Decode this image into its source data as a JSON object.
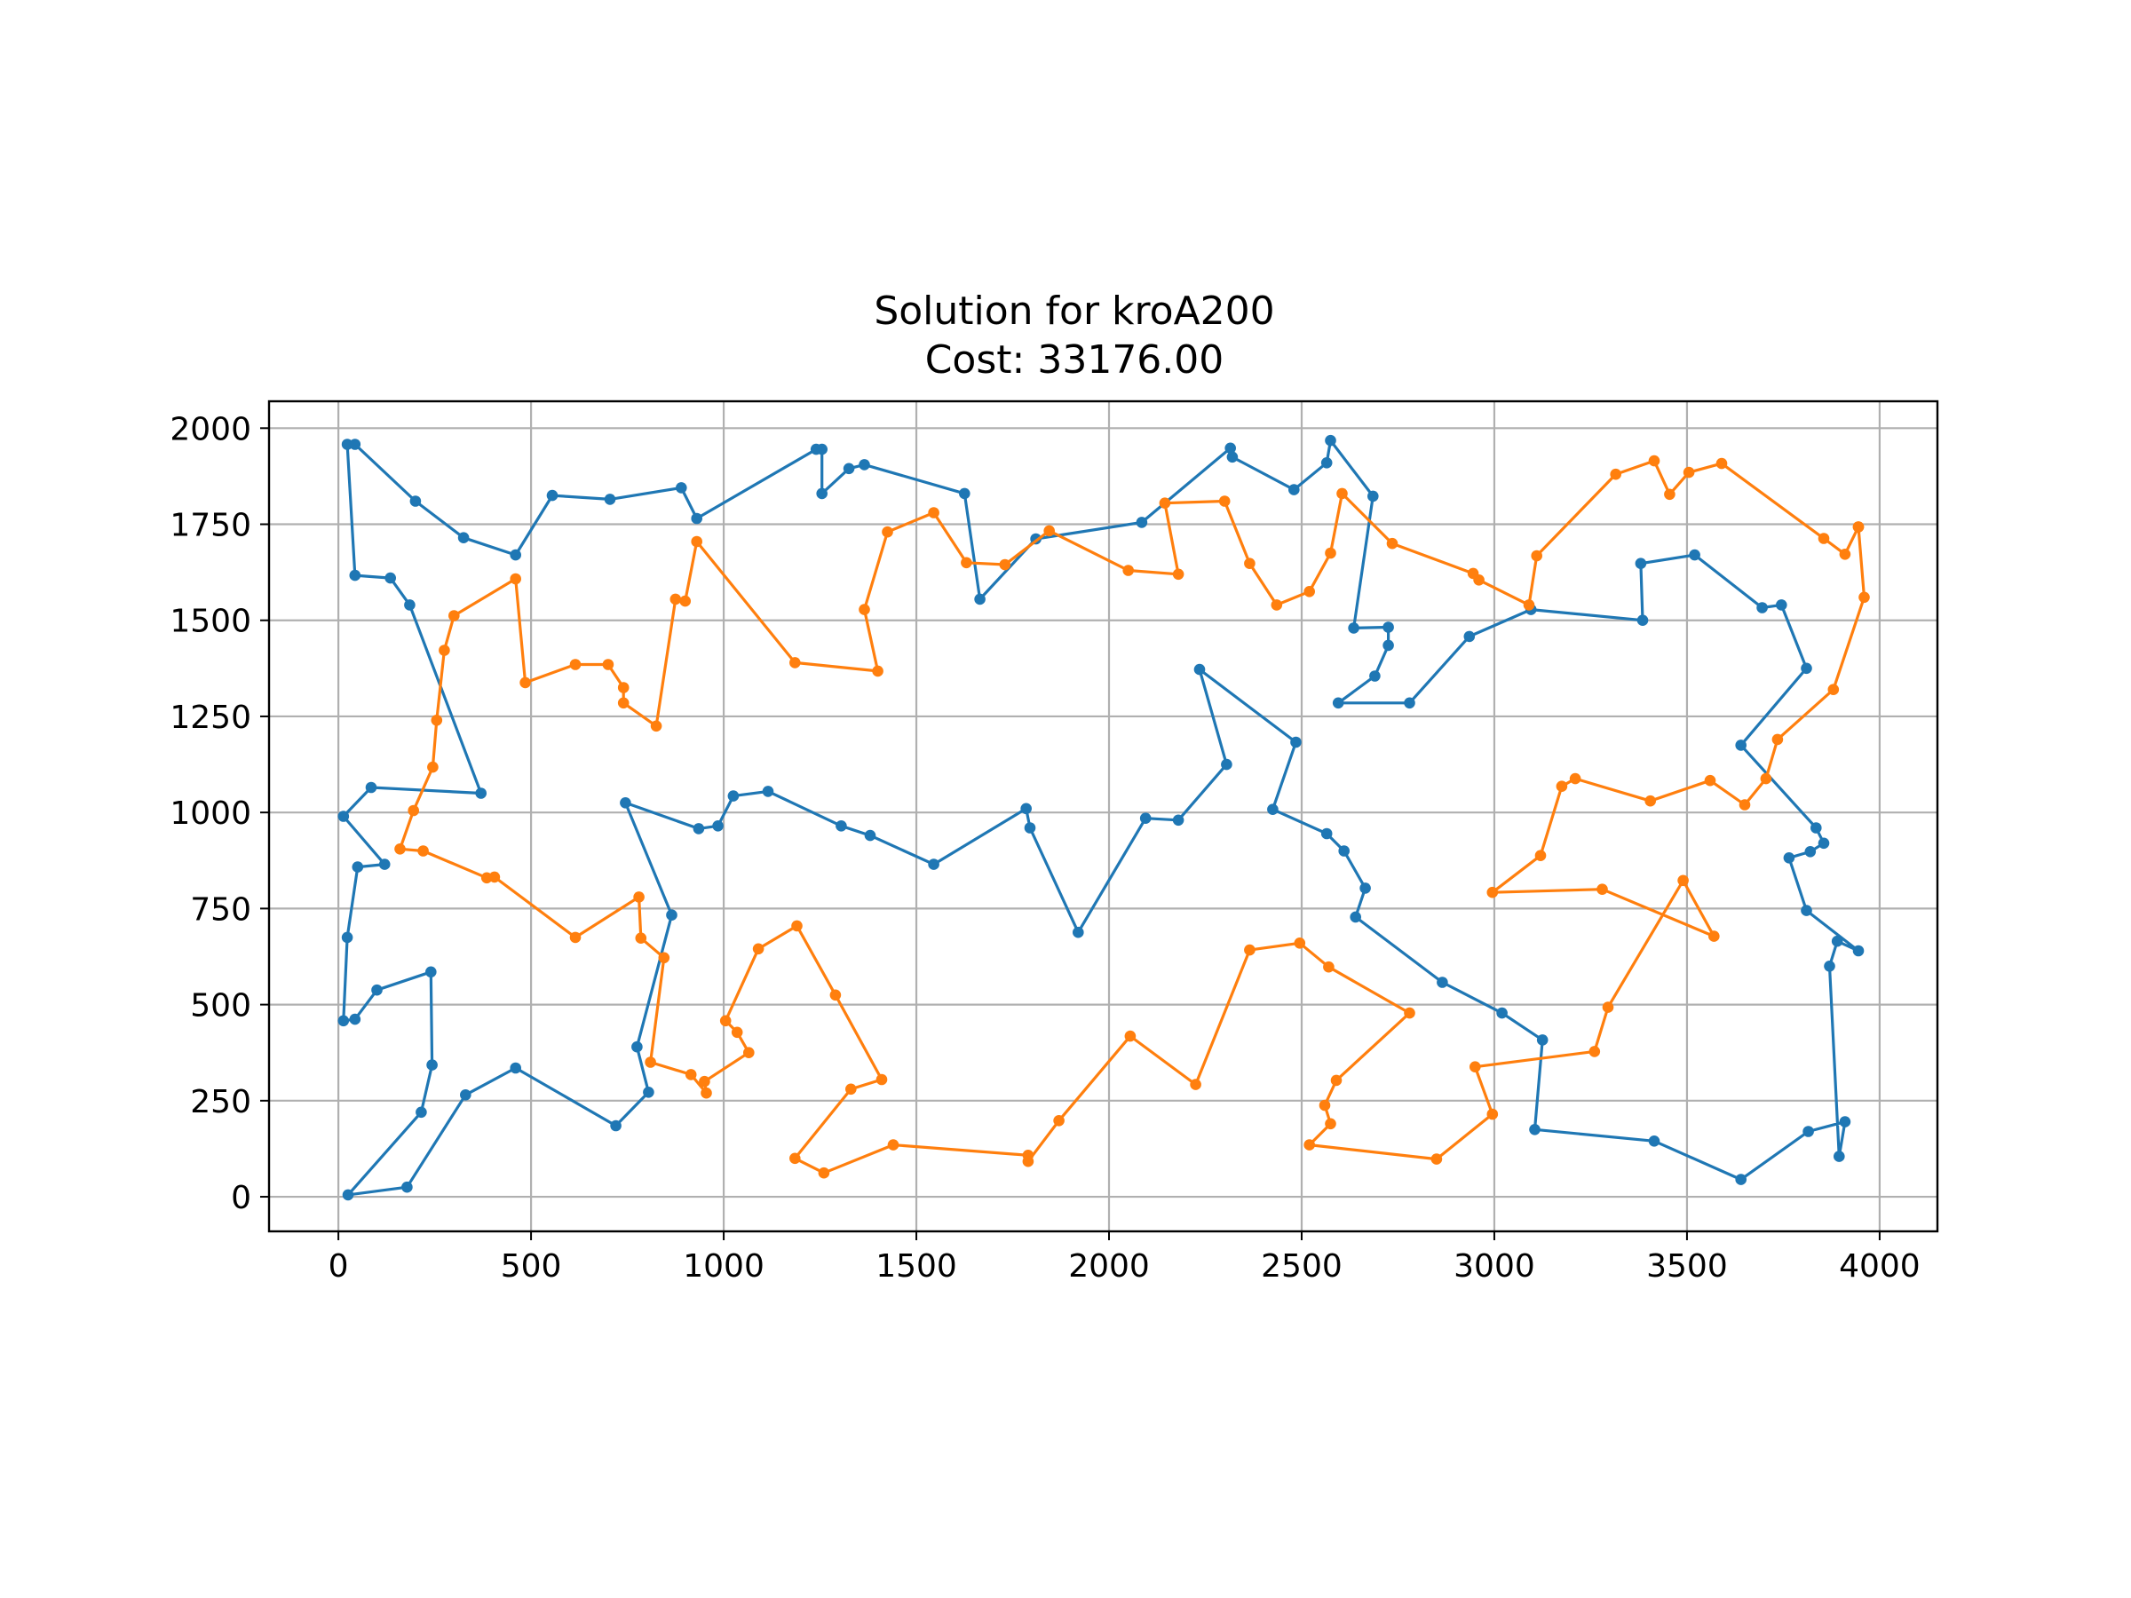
{
  "chart_data": {
    "type": "line",
    "title": "Solution for kroA200",
    "subtitle": "Cost: 33176.00",
    "xlabel": "",
    "ylabel": "",
    "xlim": [
      -180,
      4150
    ],
    "ylim": [
      -90,
      2070
    ],
    "xticks": [
      0,
      500,
      1000,
      1500,
      2000,
      2500,
      3000,
      3500,
      4000
    ],
    "yticks": [
      0,
      250,
      500,
      750,
      1000,
      1250,
      1500,
      1750,
      2000
    ],
    "grid": true,
    "legend": "none",
    "markers": true,
    "series": [
      {
        "color": "#1f77b4",
        "points": [
          [
            23,
            1958
          ],
          [
            43,
            1617
          ],
          [
            135,
            1610
          ],
          [
            185,
            1540
          ],
          [
            370,
            1050
          ],
          [
            85,
            1065
          ],
          [
            13,
            990
          ],
          [
            120,
            865
          ],
          [
            50,
            858
          ],
          [
            23,
            675
          ],
          [
            13,
            458
          ],
          [
            43,
            462
          ],
          [
            100,
            538
          ],
          [
            240,
            585
          ],
          [
            243,
            343
          ],
          [
            215,
            220
          ],
          [
            25,
            5
          ],
          [
            178,
            25
          ],
          [
            330,
            265
          ],
          [
            460,
            335
          ],
          [
            720,
            185
          ],
          [
            805,
            272
          ],
          [
            775,
            390
          ],
          [
            865,
            733
          ],
          [
            745,
            1025
          ],
          [
            935,
            958
          ],
          [
            985,
            965
          ],
          [
            1025,
            1043
          ],
          [
            1115,
            1055
          ],
          [
            1305,
            965
          ],
          [
            1380,
            940
          ],
          [
            1545,
            865
          ],
          [
            1785,
            1010
          ],
          [
            1795,
            960
          ],
          [
            1920,
            688
          ],
          [
            2095,
            985
          ],
          [
            2180,
            980
          ],
          [
            2305,
            1125
          ],
          [
            2235,
            1372
          ],
          [
            2485,
            1183
          ],
          [
            2425,
            1008
          ],
          [
            2565,
            945
          ],
          [
            2610,
            900
          ],
          [
            2665,
            803
          ],
          [
            2640,
            728
          ],
          [
            2865,
            558
          ],
          [
            3020,
            478
          ],
          [
            3125,
            408
          ],
          [
            3105,
            175
          ],
          [
            3415,
            145
          ],
          [
            3640,
            45
          ],
          [
            3815,
            170
          ],
          [
            3910,
            195
          ],
          [
            3895,
            105
          ],
          [
            3870,
            600
          ],
          [
            3890,
            665
          ],
          [
            3945,
            640
          ],
          [
            3810,
            745
          ],
          [
            3765,
            882
          ],
          [
            3820,
            898
          ],
          [
            3855,
            920
          ],
          [
            3835,
            960
          ],
          [
            3640,
            1175
          ],
          [
            3810,
            1375
          ],
          [
            3745,
            1540
          ],
          [
            3695,
            1533
          ],
          [
            3520,
            1670
          ],
          [
            3380,
            1648
          ],
          [
            3385,
            1500
          ],
          [
            3095,
            1528
          ],
          [
            2935,
            1458
          ],
          [
            2780,
            1285
          ],
          [
            2595,
            1285
          ],
          [
            2690,
            1355
          ],
          [
            2725,
            1435
          ],
          [
            2725,
            1482
          ],
          [
            2635,
            1480
          ],
          [
            2685,
            1823
          ],
          [
            2575,
            1968
          ],
          [
            2565,
            1910
          ],
          [
            2480,
            1840
          ],
          [
            2320,
            1925
          ],
          [
            2315,
            1948
          ],
          [
            2085,
            1755
          ],
          [
            1810,
            1712
          ],
          [
            1665,
            1555
          ],
          [
            1625,
            1830
          ],
          [
            1365,
            1905
          ],
          [
            1325,
            1895
          ],
          [
            1255,
            1830
          ],
          [
            1255,
            1945
          ],
          [
            1240,
            1945
          ],
          [
            930,
            1765
          ],
          [
            890,
            1845
          ],
          [
            705,
            1815
          ],
          [
            555,
            1825
          ],
          [
            460,
            1670
          ],
          [
            325,
            1715
          ],
          [
            200,
            1810
          ],
          [
            43,
            1958
          ]
        ]
      },
      {
        "color": "#ff7f0e",
        "points": [
          [
            3945,
            1743
          ],
          [
            3910,
            1672
          ],
          [
            3855,
            1713
          ],
          [
            3590,
            1908
          ],
          [
            3505,
            1885
          ],
          [
            3455,
            1828
          ],
          [
            3415,
            1915
          ],
          [
            3315,
            1880
          ],
          [
            3110,
            1668
          ],
          [
            3090,
            1540
          ],
          [
            2960,
            1605
          ],
          [
            2945,
            1622
          ],
          [
            2735,
            1700
          ],
          [
            2605,
            1830
          ],
          [
            2575,
            1675
          ],
          [
            2520,
            1575
          ],
          [
            2435,
            1540
          ],
          [
            2365,
            1648
          ],
          [
            2300,
            1810
          ],
          [
            2145,
            1805
          ],
          [
            2180,
            1620
          ],
          [
            2050,
            1630
          ],
          [
            1845,
            1733
          ],
          [
            1730,
            1645
          ],
          [
            1630,
            1650
          ],
          [
            1545,
            1780
          ],
          [
            1425,
            1730
          ],
          [
            1365,
            1528
          ],
          [
            1400,
            1368
          ],
          [
            1185,
            1390
          ],
          [
            930,
            1705
          ],
          [
            900,
            1550
          ],
          [
            875,
            1555
          ],
          [
            825,
            1225
          ],
          [
            740,
            1285
          ],
          [
            740,
            1325
          ],
          [
            700,
            1385
          ],
          [
            615,
            1385
          ],
          [
            485,
            1338
          ],
          [
            460,
            1608
          ],
          [
            300,
            1512
          ],
          [
            275,
            1422
          ],
          [
            255,
            1240
          ],
          [
            245,
            1118
          ],
          [
            195,
            1005
          ],
          [
            160,
            905
          ],
          [
            220,
            900
          ],
          [
            385,
            830
          ],
          [
            405,
            832
          ],
          [
            615,
            675
          ],
          [
            780,
            780
          ],
          [
            785,
            673
          ],
          [
            845,
            622
          ],
          [
            810,
            350
          ],
          [
            915,
            318
          ],
          [
            955,
            270
          ],
          [
            950,
            300
          ],
          [
            1065,
            375
          ],
          [
            1035,
            428
          ],
          [
            1005,
            458
          ],
          [
            1090,
            645
          ],
          [
            1190,
            705
          ],
          [
            1290,
            525
          ],
          [
            1410,
            305
          ],
          [
            1330,
            280
          ],
          [
            1185,
            100
          ],
          [
            1260,
            62
          ],
          [
            1440,
            135
          ],
          [
            1790,
            108
          ],
          [
            1790,
            92
          ],
          [
            1870,
            198
          ],
          [
            2055,
            418
          ],
          [
            2225,
            292
          ],
          [
            2365,
            642
          ],
          [
            2495,
            660
          ],
          [
            2570,
            598
          ],
          [
            2780,
            478
          ],
          [
            2590,
            303
          ],
          [
            2560,
            238
          ],
          [
            2575,
            190
          ],
          [
            2520,
            135
          ],
          [
            2850,
            98
          ],
          [
            2995,
            215
          ],
          [
            2950,
            338
          ],
          [
            3260,
            378
          ],
          [
            3295,
            493
          ],
          [
            3490,
            823
          ],
          [
            3570,
            678
          ],
          [
            3280,
            800
          ],
          [
            2995,
            792
          ],
          [
            3120,
            888
          ],
          [
            3175,
            1068
          ],
          [
            3210,
            1088
          ],
          [
            3405,
            1030
          ],
          [
            3560,
            1083
          ],
          [
            3650,
            1020
          ],
          [
            3705,
            1088
          ],
          [
            3735,
            1190
          ],
          [
            3880,
            1320
          ],
          [
            3960,
            1560
          ],
          [
            3945,
            1743
          ]
        ]
      }
    ]
  }
}
